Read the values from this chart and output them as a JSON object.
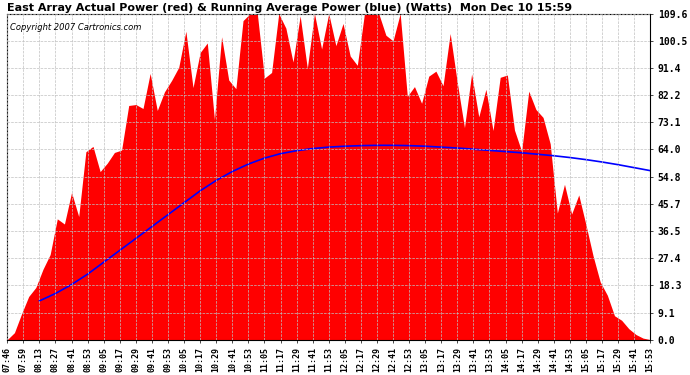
{
  "title": "East Array Actual Power (red) & Running Average Power (blue) (Watts)  Mon Dec 10 15:59",
  "copyright": "Copyright 2007 Cartronics.com",
  "yticks": [
    0.0,
    9.1,
    18.3,
    27.4,
    36.5,
    45.7,
    54.8,
    64.0,
    73.1,
    82.2,
    91.4,
    100.5,
    109.6
  ],
  "ymax": 109.6,
  "ymin": 0.0,
  "background_color": "#ffffff",
  "grid_color": "#c0c0c0",
  "red_color": "#ff0000",
  "blue_color": "#0000ff",
  "xtick_labels": [
    "07:46",
    "07:59",
    "08:13",
    "08:27",
    "08:41",
    "08:53",
    "09:05",
    "09:17",
    "09:29",
    "09:41",
    "09:53",
    "10:05",
    "10:17",
    "10:29",
    "10:41",
    "10:53",
    "11:05",
    "11:17",
    "11:29",
    "11:41",
    "11:53",
    "12:05",
    "12:17",
    "12:29",
    "12:41",
    "12:53",
    "13:05",
    "13:17",
    "13:29",
    "13:41",
    "13:53",
    "14:05",
    "14:17",
    "14:29",
    "14:41",
    "14:53",
    "15:05",
    "15:17",
    "15:29",
    "15:41",
    "15:53"
  ],
  "red_envelope": [
    0.0,
    2.0,
    8.0,
    14.0,
    20.0,
    27.0,
    34.0,
    38.0,
    42.0,
    46.0,
    50.0,
    54.0,
    58.0,
    63.0,
    67.0,
    71.0,
    75.0,
    78.0,
    81.0,
    84.0,
    86.0,
    88.5,
    90.0,
    91.5,
    93.0,
    94.0,
    95.0,
    96.0,
    96.5,
    97.0,
    98.0,
    99.0,
    100.0,
    101.0,
    102.0,
    103.0,
    104.0,
    105.0,
    106.0,
    107.0,
    108.0,
    109.0,
    109.6,
    108.0,
    107.0,
    106.5,
    106.0,
    105.5,
    105.0,
    104.0,
    103.0,
    101.0,
    99.0,
    98.0,
    97.0,
    96.5,
    96.0,
    95.5,
    95.0,
    94.5,
    94.0,
    93.0,
    92.0,
    91.0,
    90.0,
    88.0,
    86.0,
    84.0,
    83.0,
    82.0,
    81.0,
    79.0,
    77.0,
    75.0,
    72.0,
    69.0,
    65.0,
    60.0,
    55.0,
    49.0,
    43.0,
    37.0,
    30.0,
    23.0,
    16.0,
    10.0,
    6.0,
    3.5,
    1.5,
    0.5,
    0.0
  ],
  "blue_values_x": [
    2,
    3,
    4,
    5,
    6,
    7,
    8,
    9,
    10,
    11,
    12,
    13,
    14,
    15,
    16,
    17,
    18,
    19,
    20,
    21,
    22,
    23,
    24,
    25,
    26,
    27,
    28,
    29,
    30,
    31,
    32,
    33,
    34,
    35,
    36,
    37,
    38,
    39,
    40
  ],
  "blue_values_y": [
    13.0,
    15.5,
    18.5,
    22.0,
    26.0,
    30.0,
    34.0,
    38.0,
    42.0,
    46.0,
    50.0,
    53.5,
    56.5,
    59.0,
    61.0,
    62.5,
    63.5,
    64.2,
    64.7,
    65.0,
    65.2,
    65.3,
    65.3,
    65.2,
    65.0,
    64.7,
    64.4,
    64.0,
    63.6,
    63.2,
    62.8,
    62.3,
    61.8,
    61.2,
    60.5,
    59.7,
    58.8,
    57.8,
    56.8
  ],
  "n_points": 91,
  "n_ticks": 41,
  "figwidth": 6.9,
  "figheight": 3.75,
  "dpi": 100
}
